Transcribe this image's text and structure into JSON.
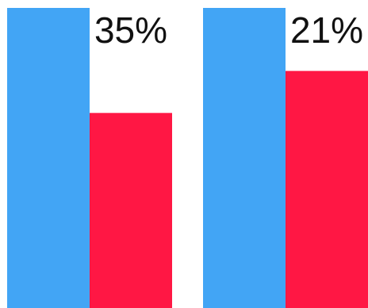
{
  "chart_data": {
    "type": "bar",
    "categories": [
      "",
      ""
    ],
    "series": [
      {
        "values": [
          100,
          100
        ],
        "color": "#42A5F5"
      },
      {
        "values": [
          65,
          79
        ],
        "color": "#FF1744"
      }
    ],
    "annotations": [
      "35%",
      "21%"
    ],
    "ylim": [
      0,
      100
    ],
    "grid": false,
    "title": "",
    "xlabel": "",
    "ylabel": ""
  }
}
